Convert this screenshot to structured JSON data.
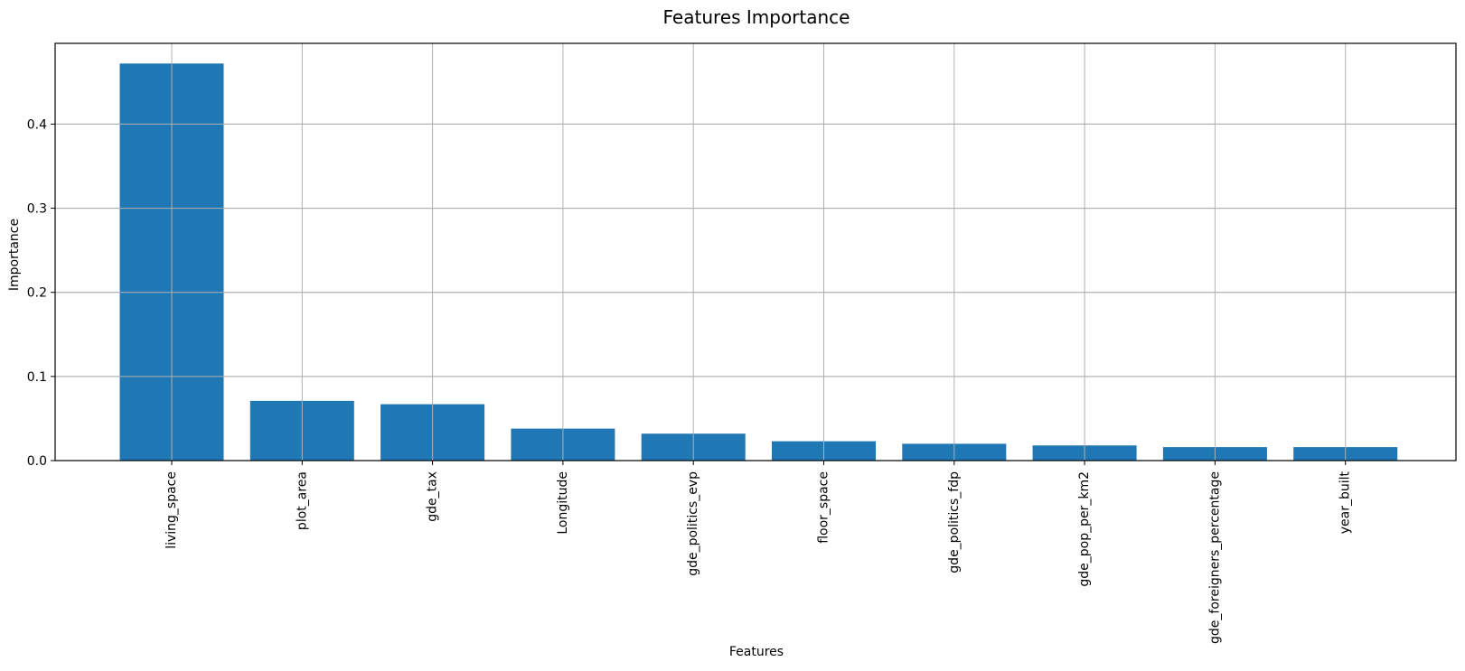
{
  "chart_data": {
    "type": "bar",
    "title": "Features Importance",
    "xlabel": "Features",
    "ylabel": "Importance",
    "categories": [
      "living_space",
      "plot_area",
      "gde_tax",
      "Longitude",
      "gde_politics_evp",
      "floor_space",
      "gde_politics_fdp",
      "gde_pop_per_km2",
      "gde_foreigners_percentage",
      "year_built"
    ],
    "values": [
      0.472,
      0.071,
      0.067,
      0.038,
      0.032,
      0.023,
      0.02,
      0.018,
      0.016,
      0.016
    ],
    "ylim": [
      0,
      0.496
    ],
    "yticks": [
      0.0,
      0.1,
      0.2,
      0.3,
      0.4
    ],
    "ytick_labels": [
      "0.0",
      "0.1",
      "0.2",
      "0.3",
      "0.4"
    ],
    "grid": true,
    "legend": "none",
    "colors": {
      "bar": "#1f77b4",
      "grid": "#b0b0b0",
      "axes": "#000000"
    }
  }
}
